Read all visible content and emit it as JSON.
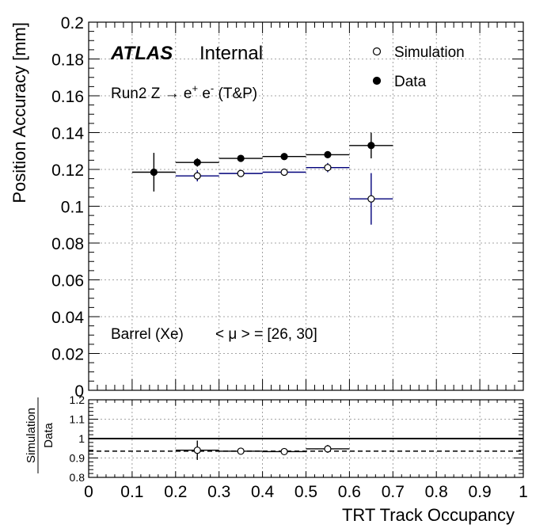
{
  "chart_data": [
    {
      "type": "scatter",
      "panel": "main",
      "ylabel": "Position Accuracy [mm]",
      "xlim": [
        0,
        1
      ],
      "ylim": [
        0,
        0.2
      ],
      "grid": true,
      "x_ticks": [
        "0",
        "0.1",
        "0.2",
        "0.3",
        "0.4",
        "0.5",
        "0.6",
        "0.7",
        "0.8",
        "0.9",
        "1"
      ],
      "y_ticks": [
        "0",
        "0.02",
        "0.04",
        "0.06",
        "0.08",
        "0.1",
        "0.12",
        "0.14",
        "0.16",
        "0.18",
        "0.2"
      ],
      "x_tick_values": [
        0,
        0.1,
        0.2,
        0.3,
        0.4,
        0.5,
        0.6,
        0.7,
        0.8,
        0.9,
        1
      ],
      "y_tick_values": [
        0,
        0.02,
        0.04,
        0.06,
        0.08,
        0.1,
        0.12,
        0.14,
        0.16,
        0.18,
        0.2
      ],
      "legend": {
        "placement": "top-right",
        "entries": [
          {
            "label": "Simulation",
            "marker": "open-circle"
          },
          {
            "label": "Data",
            "marker": "filled-circle"
          }
        ]
      },
      "labels": {
        "atlas": "ATLAS",
        "internal": "Internal",
        "process_prefix": "Run2 Z ",
        "process_arrow": "→",
        "process_e": " e",
        "process_plus": "+",
        "process_e2": " e",
        "process_minus": "-",
        "process_suffix": " (T&P)",
        "region": "Barrel (Xe)",
        "pileup": "< μ > = [26, 30]"
      },
      "series": [
        {
          "name": "Simulation",
          "color": "#00007a",
          "marker": "open-circle",
          "points": [
            {
              "x": 0.25,
              "xlo": 0.2,
              "xhi": 0.3,
              "y": 0.1165,
              "ylo": 0.1135,
              "yhi": 0.1195
            },
            {
              "x": 0.35,
              "xlo": 0.3,
              "xhi": 0.4,
              "y": 0.1178,
              "ylo": 0.1165,
              "yhi": 0.1191
            },
            {
              "x": 0.45,
              "xlo": 0.4,
              "xhi": 0.5,
              "y": 0.1185,
              "ylo": 0.1173,
              "yhi": 0.1197
            },
            {
              "x": 0.55,
              "xlo": 0.5,
              "xhi": 0.6,
              "y": 0.121,
              "ylo": 0.1185,
              "yhi": 0.1235
            },
            {
              "x": 0.65,
              "xlo": 0.6,
              "xhi": 0.7,
              "y": 0.104,
              "ylo": 0.09,
              "yhi": 0.118
            }
          ]
        },
        {
          "name": "Data",
          "color": "#000000",
          "marker": "filled-circle",
          "points": [
            {
              "x": 0.15,
              "xlo": 0.1,
              "xhi": 0.2,
              "y": 0.1185,
              "ylo": 0.108,
              "yhi": 0.129
            },
            {
              "x": 0.25,
              "xlo": 0.2,
              "xhi": 0.3,
              "y": 0.1238,
              "ylo": 0.1215,
              "yhi": 0.1261
            },
            {
              "x": 0.35,
              "xlo": 0.3,
              "xhi": 0.4,
              "y": 0.126,
              "ylo": 0.1248,
              "yhi": 0.1272
            },
            {
              "x": 0.45,
              "xlo": 0.4,
              "xhi": 0.5,
              "y": 0.127,
              "ylo": 0.1258,
              "yhi": 0.1282
            },
            {
              "x": 0.55,
              "xlo": 0.5,
              "xhi": 0.6,
              "y": 0.128,
              "ylo": 0.1265,
              "yhi": 0.1295
            },
            {
              "x": 0.65,
              "xlo": 0.6,
              "xhi": 0.7,
              "y": 0.133,
              "ylo": 0.126,
              "yhi": 0.14
            }
          ]
        }
      ]
    },
    {
      "type": "scatter",
      "panel": "ratio",
      "ylabel_numerator": "Simulation",
      "ylabel_denominator": "Data",
      "xlabel": "TRT Track Occupancy",
      "xlim": [
        0,
        1
      ],
      "ylim": [
        0.8,
        1.2
      ],
      "grid": true,
      "y_ticks": [
        "0.8",
        "0.9",
        "1",
        "1.1",
        "1.2"
      ],
      "y_tick_values": [
        0.8,
        0.9,
        1,
        1.1,
        1.2
      ],
      "reference_lines": [
        {
          "y": 1.0,
          "style": "solid"
        },
        {
          "y": 0.935,
          "style": "dashed"
        }
      ],
      "series": [
        {
          "name": "Simulation",
          "color": "#000000",
          "marker": "open-circle",
          "points": [
            {
              "x": 0.25,
              "xlo": 0.2,
              "xhi": 0.3,
              "y": 0.94,
              "ylo": 0.89,
              "yhi": 0.99
            },
            {
              "x": 0.35,
              "xlo": 0.3,
              "xhi": 0.4,
              "y": 0.935,
              "ylo": 0.925,
              "yhi": 0.945
            },
            {
              "x": 0.45,
              "xlo": 0.4,
              "xhi": 0.5,
              "y": 0.933,
              "ylo": 0.923,
              "yhi": 0.943
            },
            {
              "x": 0.55,
              "xlo": 0.5,
              "xhi": 0.6,
              "y": 0.947,
              "ylo": 0.927,
              "yhi": 0.967
            }
          ]
        }
      ]
    }
  ]
}
